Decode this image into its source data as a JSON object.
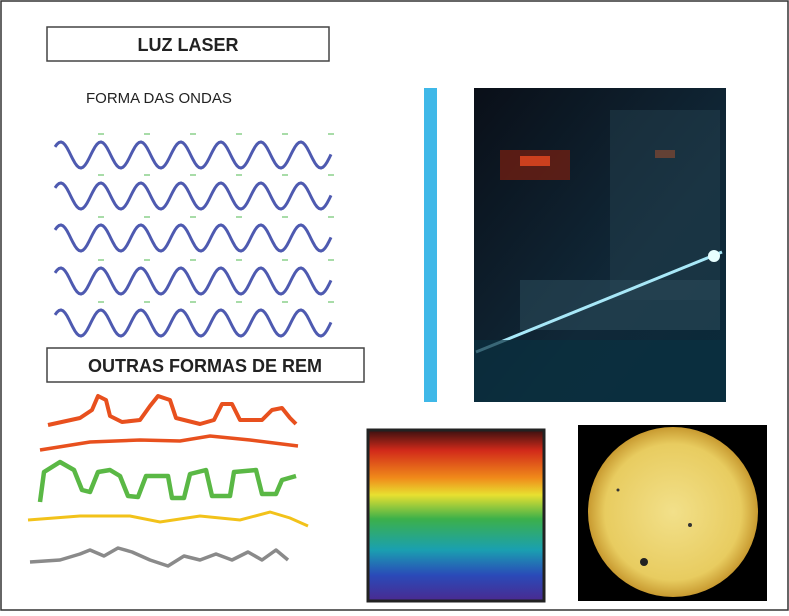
{
  "title_box": "LUZ LASER",
  "subtitle": "FORMA DAS ONDAS",
  "section_box": "OUTRAS FORMAS DE REM"
}
